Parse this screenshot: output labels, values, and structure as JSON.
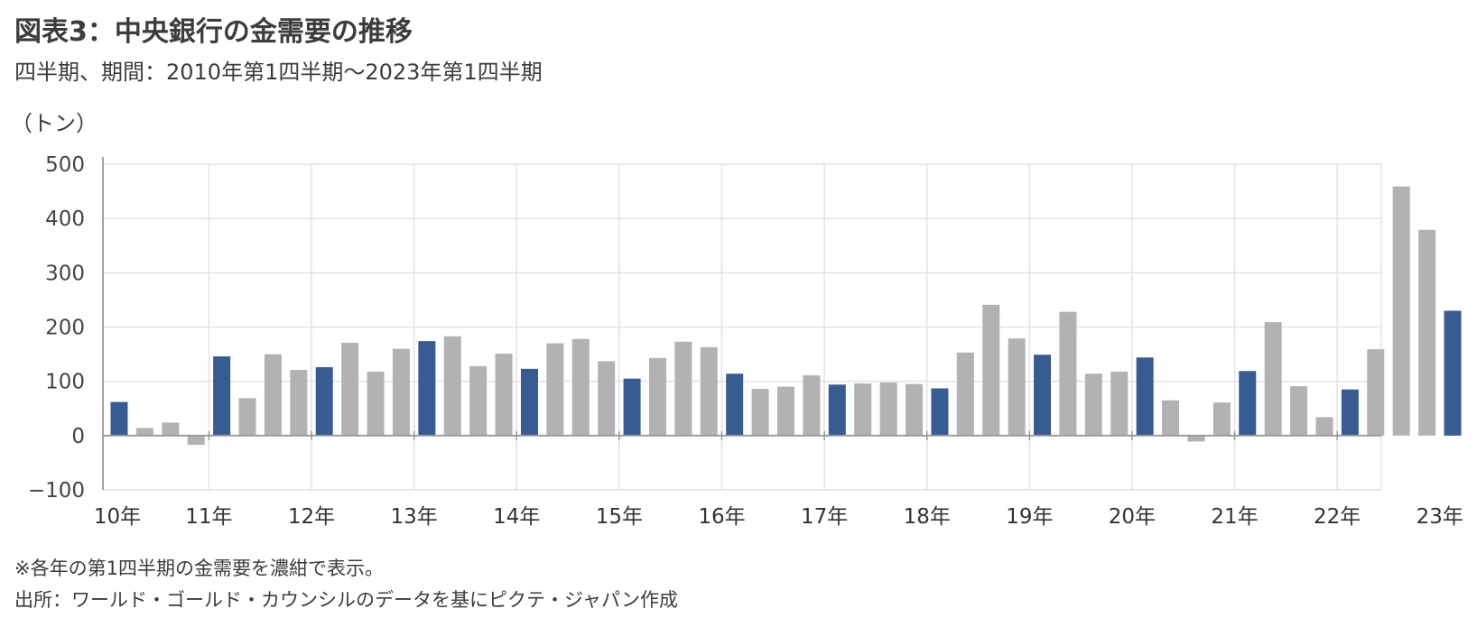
{
  "title": "図表3：中央銀行の金需要の推移",
  "subtitle": "四半期、期間：2010年第1四半期～2023年第1四半期",
  "unit_label": "（トン）",
  "notes": [
    "※各年の第1四半期の金需要を濃紺で表示。",
    "出所：ワールド・ゴールド・カウンシルのデータを基にピクテ・ジャパン作成"
  ],
  "colors": {
    "highlight": "#365c92",
    "normal": "#b2b2b2",
    "grid": "#e3e3e3",
    "axis": "#999999"
  },
  "chart_data": {
    "type": "bar",
    "ylim": [
      -100,
      500
    ],
    "yticks": [
      -100,
      0,
      100,
      200,
      300,
      400,
      500
    ],
    "ytick_labels": [
      "−100",
      "0",
      "100",
      "200",
      "300",
      "400",
      "500"
    ],
    "year_labels": [
      "10年",
      "11年",
      "12年",
      "13年",
      "14年",
      "15年",
      "16年",
      "17年",
      "18年",
      "19年",
      "20年",
      "21年",
      "22年",
      "23年"
    ],
    "grid": true,
    "categories": [
      "2010Q1",
      "2010Q2",
      "2010Q3",
      "2010Q4",
      "2011Q1",
      "2011Q2",
      "2011Q3",
      "2011Q4",
      "2012Q1",
      "2012Q2",
      "2012Q3",
      "2012Q4",
      "2013Q1",
      "2013Q2",
      "2013Q3",
      "2013Q4",
      "2014Q1",
      "2014Q2",
      "2014Q3",
      "2014Q4",
      "2015Q1",
      "2015Q2",
      "2015Q3",
      "2015Q4",
      "2016Q1",
      "2016Q2",
      "2016Q3",
      "2016Q4",
      "2017Q1",
      "2017Q2",
      "2017Q3",
      "2017Q4",
      "2018Q1",
      "2018Q2",
      "2018Q3",
      "2018Q4",
      "2019Q1",
      "2019Q2",
      "2019Q3",
      "2019Q4",
      "2020Q1",
      "2020Q2",
      "2020Q3",
      "2020Q4",
      "2021Q1",
      "2021Q2",
      "2021Q3",
      "2021Q4",
      "2022Q1",
      "2022Q2",
      "2022Q3",
      "2022Q4",
      "2023Q1"
    ],
    "values": [
      62,
      14,
      24,
      -17,
      146,
      69,
      150,
      121,
      126,
      171,
      118,
      160,
      174,
      183,
      128,
      151,
      123,
      170,
      178,
      137,
      105,
      143,
      173,
      163,
      114,
      86,
      90,
      111,
      94,
      96,
      98,
      95,
      87,
      153,
      241,
      179,
      149,
      228,
      114,
      118,
      144,
      65,
      -11,
      61,
      119,
      209,
      91,
      34,
      85,
      159,
      459,
      379,
      230
    ],
    "highlight_q1": true
  }
}
